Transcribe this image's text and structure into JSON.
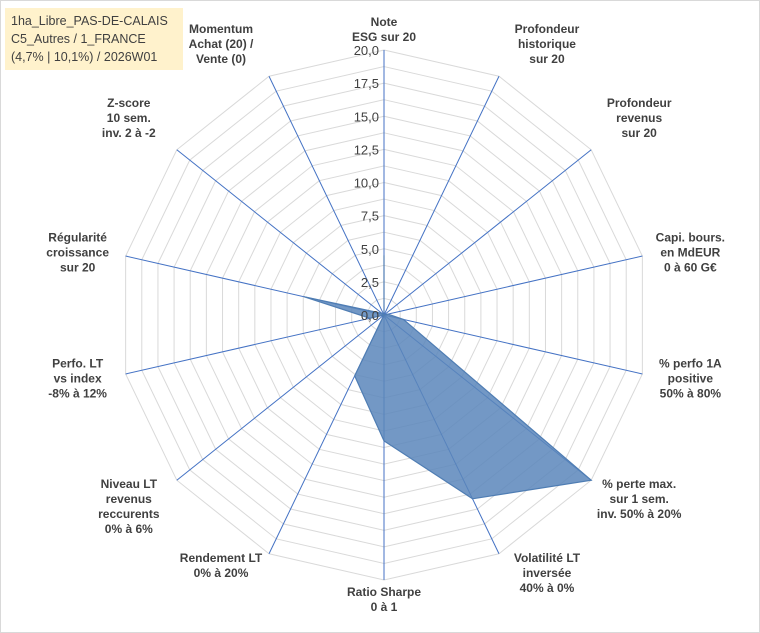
{
  "title_lines": [
    "1ha_Libre_PAS-DE-CALAIS",
    "C5_Autres / 1_FRANCE",
    "(4,7% | 10,1%) / 2026W01"
  ],
  "chart_data": {
    "type": "radar",
    "r_min": 0,
    "r_max": 20,
    "tick_labels": [
      "0,0",
      "2,5",
      "5,0",
      "7,5",
      "10,0",
      "12,5",
      "15,0",
      "17,5",
      "20,0"
    ],
    "ticks": [
      0,
      2.5,
      5,
      7.5,
      10,
      12.5,
      15,
      17.5,
      20
    ],
    "axes": [
      {
        "label": [
          "Note",
          "ESG sur 20"
        ],
        "value": 4.5
      },
      {
        "label": [
          "Profondeur",
          "historique",
          "sur 20"
        ],
        "value": 0
      },
      {
        "label": [
          "Profondeur",
          "revenus",
          "sur 20"
        ],
        "value": 0
      },
      {
        "label": [
          "Capi. bours.",
          "en MdEUR",
          "0 à 60 G€"
        ],
        "value": 0.3
      },
      {
        "label": [
          "% perfo 1A",
          "positive",
          "50% à 80%"
        ],
        "value": 1.5
      },
      {
        "label": [
          "% perte max.",
          "sur 1 sem.",
          "inv. 50% à 20%"
        ],
        "value": 20
      },
      {
        "label": [
          "Volatilité LT",
          "inversée",
          "40% à 0%"
        ],
        "value": 15.4
      },
      {
        "label": [
          "Ratio Sharpe",
          "0 à 1"
        ],
        "value": 9.5
      },
      {
        "label": [
          "Rendement LT",
          "0% à 20%"
        ],
        "value": 5.1
      },
      {
        "label": [
          "Niveau LT",
          "revenus",
          "reccurents",
          "0% à 6%"
        ],
        "value": 0
      },
      {
        "label": [
          "Perfo. LT",
          "vs index",
          "-8% à 12%"
        ],
        "value": 1.1
      },
      {
        "label": [
          "Régularité",
          "croissance",
          "sur 20"
        ],
        "value": 6.2
      },
      {
        "label": [
          "Z-score",
          "10 sem.",
          "inv. 2 à -2"
        ],
        "value": 0.2
      },
      {
        "label": [
          "Momentum",
          "Achat (20) /",
          "Vente (0)"
        ],
        "value": 0
      }
    ],
    "series_color": "#4f7db3",
    "series_fill": "#5b86bb",
    "grid_color": "#d9d9d9",
    "axis_color": "#4472c4"
  }
}
